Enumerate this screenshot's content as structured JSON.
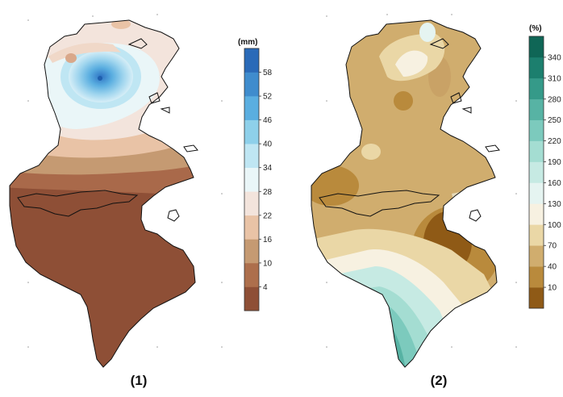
{
  "maps": [
    {
      "caption": "(1)",
      "unit": "(mm)",
      "legend": {
        "colors": [
          "#8e4f36",
          "#ad6f4c",
          "#c59a72",
          "#e9c3a6",
          "#f3e4dc",
          "#eaf6f8",
          "#bfe6f3",
          "#8ed0ea",
          "#5aaee0",
          "#3f8ccd",
          "#2a6ab8"
        ],
        "tick_labels": [
          "4",
          "10",
          "16",
          "22",
          "28",
          "34",
          "40",
          "46",
          "52",
          "58"
        ]
      }
    },
    {
      "caption": "(2)",
      "unit": "(%)",
      "legend": {
        "colors": [
          "#8f5a16",
          "#b98a3c",
          "#d0ad6e",
          "#ead7a6",
          "#f7f1e1",
          "#e5f4f1",
          "#c6eae3",
          "#a4ddd2",
          "#7ccabd",
          "#57b3a4",
          "#359a89",
          "#1c7f6e",
          "#0f6656"
        ],
        "tick_labels": [
          "10",
          "40",
          "70",
          "100",
          "130",
          "160",
          "190",
          "220",
          "250",
          "280",
          "310",
          "340"
        ]
      }
    }
  ]
}
